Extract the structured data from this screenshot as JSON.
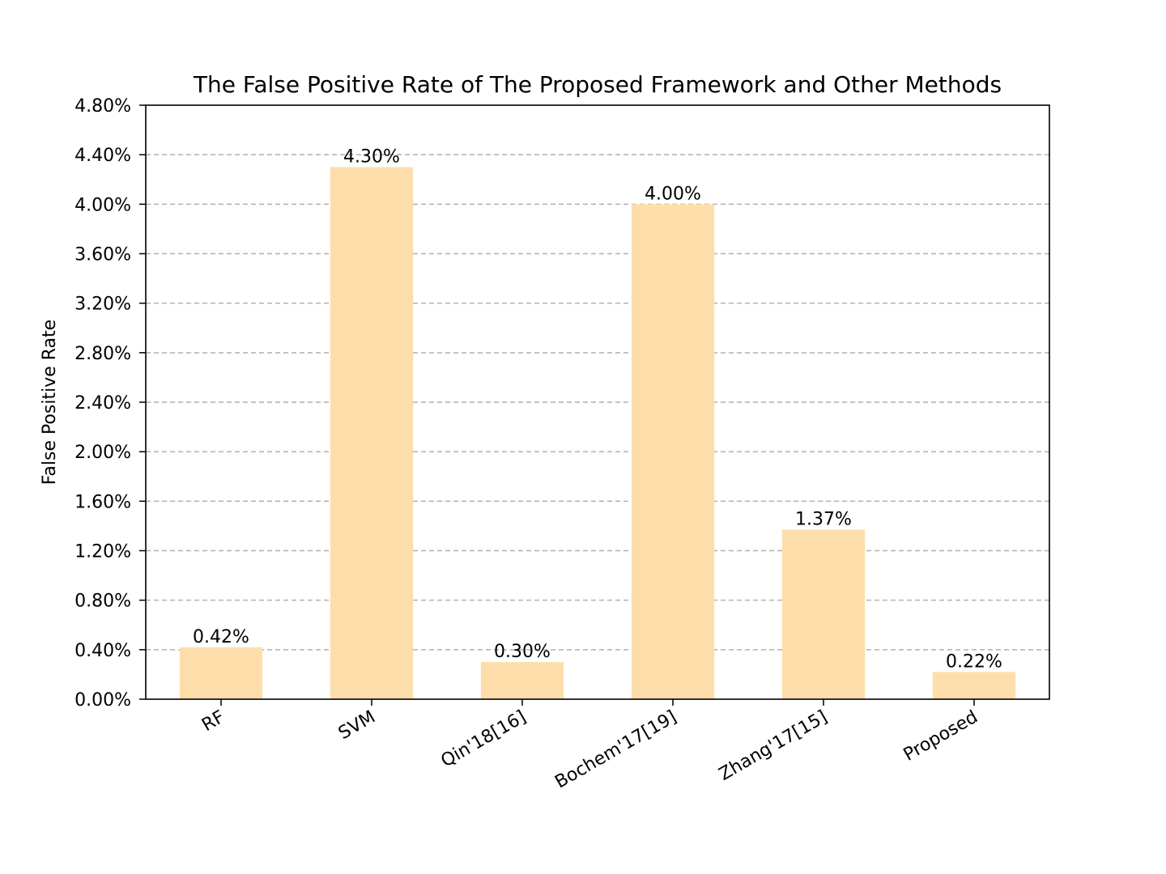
{
  "chart_data": {
    "type": "bar",
    "title": "The False Positive Rate of The Proposed Framework and Other Methods",
    "xlabel": "",
    "ylabel": "False Positive Rate",
    "categories": [
      "RF",
      "SVM",
      "Qin'18[16]",
      "Bochem'17[19]",
      "Zhang'17[15]",
      "Proposed"
    ],
    "values": [
      0.42,
      4.3,
      0.3,
      4.0,
      1.37,
      0.22
    ],
    "data_labels": [
      "0.42%",
      "4.30%",
      "0.30%",
      "4.00%",
      "1.37%",
      "0.22%"
    ],
    "ylim": [
      0,
      4.8
    ],
    "yticks": [
      0,
      0.4,
      0.8,
      1.2,
      1.6,
      2.0,
      2.4,
      2.8,
      3.2,
      3.6,
      4.0,
      4.4,
      4.8
    ],
    "ytick_labels": [
      "0.00%",
      "0.40%",
      "0.80%",
      "1.20%",
      "1.60%",
      "2.00%",
      "2.40%",
      "2.80%",
      "3.20%",
      "3.60%",
      "4.00%",
      "4.40%",
      "4.80%"
    ],
    "grid": "y-dashed",
    "bar_color": "#fddeab",
    "grid_color": "#b0b0b0"
  }
}
